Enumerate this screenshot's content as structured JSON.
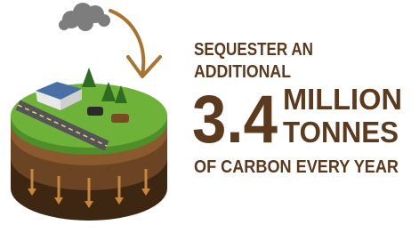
{
  "headline": {
    "line1": "SEQUESTER AN",
    "line2": "ADDITIONAL",
    "figure": "3.4",
    "unit1": "MILLION",
    "unit2": "TONNES",
    "line3": "OF CARBON EVERY YEAR"
  }
}
